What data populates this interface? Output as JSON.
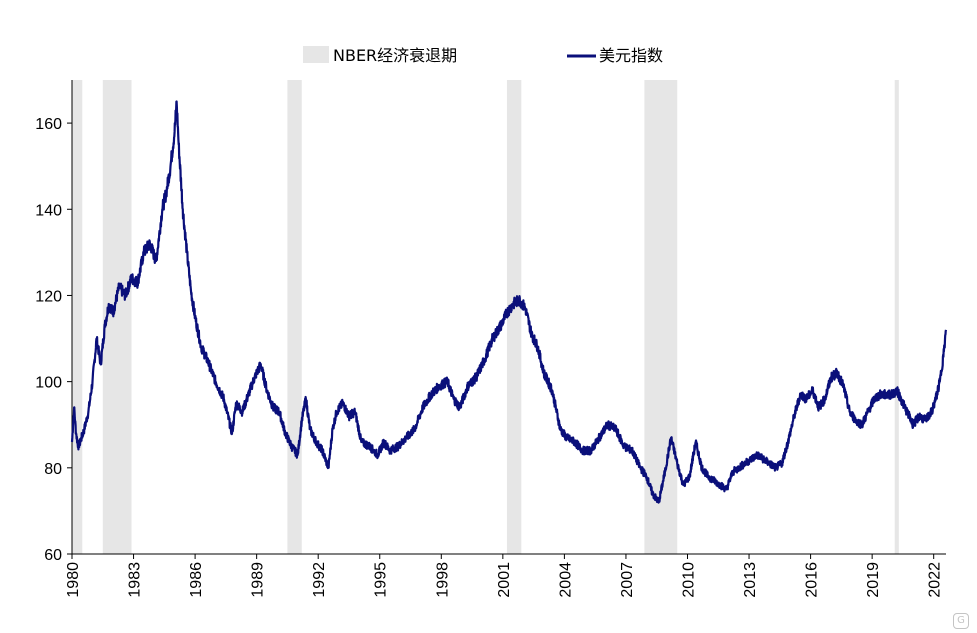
{
  "chart_data": {
    "type": "line",
    "title": "",
    "xlabel": "",
    "ylabel": "",
    "xlim": [
      1980.0,
      2022.6
    ],
    "ylim": [
      60,
      170
    ],
    "y_ticks": [
      60,
      80,
      100,
      120,
      140,
      160
    ],
    "x_ticks": [
      1980,
      1983,
      1986,
      1989,
      1992,
      1995,
      1998,
      2001,
      2004,
      2007,
      2010,
      2013,
      2016,
      2019,
      2022
    ],
    "x_tick_labels": [
      "1980",
      "1983",
      "1986",
      "1989",
      "1992",
      "1995",
      "1998",
      "2001",
      "2004",
      "2007",
      "2010",
      "2013",
      "2016",
      "2019",
      "2022"
    ],
    "y_tick_labels": [
      "60",
      "80",
      "100",
      "120",
      "140",
      "160"
    ],
    "legend": {
      "position": "top-center",
      "entries": [
        "NBER经济衰退期",
        "美元指数"
      ]
    },
    "recessions": {
      "name": "NBER经济衰退期",
      "color": "#e6e6e6",
      "periods": [
        [
          1980.0,
          1980.5
        ],
        [
          1981.5,
          1982.9
        ],
        [
          1990.5,
          1991.2
        ],
        [
          2001.2,
          2001.9
        ],
        [
          2007.9,
          2009.5
        ],
        [
          2020.1,
          2020.3
        ]
      ]
    },
    "series": [
      {
        "name": "美元指数",
        "color": "#0a0f7a",
        "x": [
          1980.0,
          1980.1,
          1980.2,
          1980.3,
          1980.4,
          1980.6,
          1980.8,
          1981.0,
          1981.2,
          1981.4,
          1981.6,
          1981.8,
          1982.0,
          1982.3,
          1982.6,
          1982.9,
          1983.2,
          1983.5,
          1983.8,
          1984.1,
          1984.4,
          1984.6,
          1984.8,
          1985.0,
          1985.1,
          1985.2,
          1985.4,
          1985.6,
          1985.8,
          1986.0,
          1986.3,
          1986.6,
          1987.0,
          1987.4,
          1987.8,
          1988.0,
          1988.3,
          1988.6,
          1988.9,
          1989.2,
          1989.5,
          1989.8,
          1990.1,
          1990.4,
          1990.7,
          1991.0,
          1991.2,
          1991.4,
          1991.6,
          1991.9,
          1992.2,
          1992.5,
          1992.7,
          1992.9,
          1993.2,
          1993.5,
          1993.8,
          1994.1,
          1994.5,
          1994.9,
          1995.2,
          1995.5,
          1995.9,
          1996.3,
          1996.7,
          1997.1,
          1997.5,
          1997.9,
          1998.3,
          1998.6,
          1998.9,
          1999.3,
          1999.7,
          2000.1,
          2000.5,
          2000.9,
          2001.2,
          2001.5,
          2001.8,
          2002.1,
          2002.4,
          2002.7,
          2003.0,
          2003.4,
          2003.8,
          2004.1,
          2004.5,
          2004.9,
          2005.3,
          2005.7,
          2006.1,
          2006.5,
          2006.9,
          2007.3,
          2007.7,
          2008.0,
          2008.3,
          2008.6,
          2008.9,
          2009.2,
          2009.5,
          2009.8,
          2010.1,
          2010.4,
          2010.7,
          2011.0,
          2011.3,
          2011.6,
          2011.9,
          2012.2,
          2012.5,
          2012.8,
          2013.1,
          2013.4,
          2013.7,
          2014.0,
          2014.3,
          2014.6,
          2014.9,
          2015.2,
          2015.5,
          2015.8,
          2016.1,
          2016.4,
          2016.7,
          2017.0,
          2017.3,
          2017.6,
          2017.9,
          2018.2,
          2018.5,
          2018.8,
          2019.1,
          2019.4,
          2019.7,
          2020.0,
          2020.2,
          2020.4,
          2020.7,
          2021.0,
          2021.3,
          2021.6,
          2021.9,
          2022.1,
          2022.3,
          2022.5,
          2022.6
        ],
        "values": [
          86,
          94,
          88,
          85,
          86,
          89,
          93,
          100,
          110,
          104,
          113,
          118,
          116,
          122,
          120,
          124,
          123,
          130,
          132,
          128,
          140,
          144,
          150,
          158,
          165,
          155,
          140,
          130,
          121,
          115,
          108,
          105,
          100,
          96,
          88,
          95,
          93,
          97,
          101,
          104,
          98,
          94,
          93,
          88,
          85,
          83,
          91,
          96,
          89,
          86,
          84,
          80,
          89,
          93,
          95,
          92,
          93,
          86,
          85,
          83,
          86,
          84,
          85,
          87,
          89,
          94,
          97,
          99,
          100,
          96,
          94,
          99,
          101,
          105,
          110,
          113,
          116,
          118,
          119,
          117,
          111,
          108,
          102,
          98,
          89,
          87,
          86,
          84,
          84,
          87,
          90,
          89,
          85,
          84,
          80,
          78,
          74,
          72,
          79,
          87,
          81,
          76,
          78,
          86,
          80,
          78,
          77,
          76,
          75,
          79,
          80,
          81,
          82,
          83,
          82,
          81,
          80,
          81,
          86,
          92,
          97,
          96,
          98,
          94,
          96,
          101,
          102,
          99,
          93,
          91,
          90,
          93,
          96,
          97,
          97,
          97,
          98,
          96,
          93,
          90,
          92,
          91,
          93,
          96,
          100,
          107,
          112
        ]
      }
    ]
  }
}
